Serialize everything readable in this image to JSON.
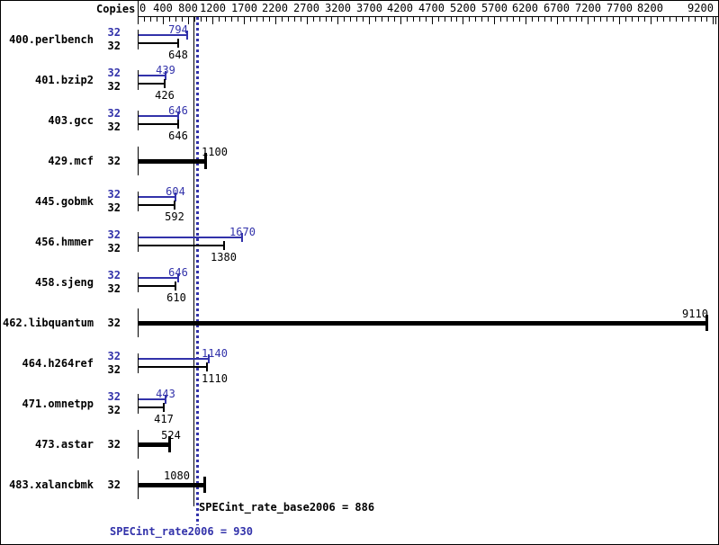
{
  "chart_data": {
    "type": "bar",
    "orientation": "horizontal",
    "title": "",
    "copies_label": "Copies",
    "colors": {
      "peak": "#3232aa",
      "base": "#000000"
    },
    "axis": {
      "min": 0,
      "labeled_ticks": [
        0,
        400,
        800,
        1200,
        1700,
        2200,
        2700,
        3200,
        3700,
        4200,
        4700,
        5200,
        5700,
        6200,
        6700,
        7200,
        7700,
        8200,
        9200
      ],
      "minor_step": 100,
      "last_minor_tick": 9200,
      "end_cap": true
    },
    "benchmarks": [
      {
        "name": "400.perlbench",
        "copies": [
          32,
          32
        ],
        "peak": 794,
        "base": 648,
        "peak_label_pos": "end_right"
      },
      {
        "name": "401.bzip2",
        "copies": [
          32,
          32
        ],
        "peak": 439,
        "base": 426
      },
      {
        "name": "403.gcc",
        "copies": [
          32,
          32
        ],
        "peak": 646,
        "base": 646
      },
      {
        "name": "429.mcf",
        "copies": [
          32
        ],
        "single": 1100,
        "value_label_pos": "right_of_refs"
      },
      {
        "name": "445.gobmk",
        "copies": [
          32,
          32
        ],
        "peak": 604,
        "base": 592
      },
      {
        "name": "456.hmmer",
        "copies": [
          32,
          32
        ],
        "peak": 1670,
        "base": 1380
      },
      {
        "name": "458.sjeng",
        "copies": [
          32,
          32
        ],
        "peak": 646,
        "base": 610
      },
      {
        "name": "462.libquantum",
        "copies": [
          32
        ],
        "single": 9110,
        "value_label_pos": "end_right"
      },
      {
        "name": "464.h264ref",
        "copies": [
          32,
          32
        ],
        "peak": 1140,
        "base": 1110,
        "peak_label_pos": "right_of_refs",
        "base_label_pos": "right_of_refs"
      },
      {
        "name": "471.omnetpp",
        "copies": [
          32,
          32
        ],
        "peak": 443,
        "base": 417
      },
      {
        "name": "473.astar",
        "copies": [
          32
        ],
        "single": 524
      },
      {
        "name": "483.xalancbmk",
        "copies": [
          32
        ],
        "single": 1080,
        "value_label_pos": "left_of_refs"
      }
    ],
    "refs": {
      "base": {
        "value": 886,
        "label": "SPECint_rate_base2006 = 886"
      },
      "peak": {
        "value": 930,
        "label": "SPECint_rate2006 = 930"
      }
    }
  }
}
